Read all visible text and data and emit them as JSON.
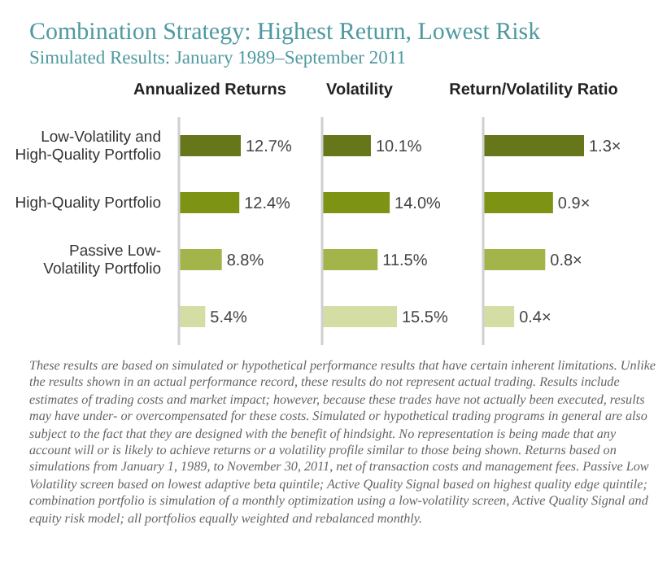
{
  "chart_data": [
    {
      "type": "other",
      "title": "Combination Strategy: Highest Return, Lowest Risk",
      "subtitle": "Simulated Results: January 1989–September 2011",
      "annotations": [
        "These results are based on simulated or hypothetical performance results that have certain inherent limitations. Unlike the results shown in an actual performance record, these results do not represent actual trading. Results include estimates of trading costs and market impact; however, because these trades have not actually been executed, results may have under- or overcompensated for these costs. Simulated or hypothetical trading programs in general are also subject to the fact that they are designed with the benefit of hindsight. No representation is being made that any account will or is likely to achieve returns or a volatility profile similar to those being shown. Returns based on simulations from January 1, 1989, to November 30, 2011, net of transaction costs and management fees. Passive Low Volatility screen based on lowest adaptive beta quintile; Active Quality Signal based on highest quality edge quintile; combination portfolio is simulation of a monthly optimization using a low-volatility screen, Active Quality Signal and equity risk model; all portfolios equally weighted and rebalanced monthly."
      ]
    },
    {
      "type": "bar",
      "orientation": "horizontal",
      "title": "Annualized Returns",
      "categories": [
        "Low-Volatility and High-Quality Portfolio",
        "High-Quality Portfolio",
        "Passive Low-Volatility Portfolio",
        null
      ],
      "values": [
        12.7,
        12.4,
        8.8,
        5.4
      ],
      "value_labels": [
        "12.7%",
        "12.4%",
        "8.8%",
        "5.4%"
      ],
      "colors": [
        "#66761a",
        "#7d9314",
        "#a3b54a",
        "#d4dea4"
      ],
      "tick_labels": "y"
    },
    {
      "type": "bar",
      "orientation": "horizontal",
      "title": "Volatility",
      "values": [
        10.1,
        14.0,
        11.5,
        15.5
      ],
      "value_labels": [
        "10.1%",
        "14.0%",
        "11.5%",
        "15.5%"
      ],
      "colors": [
        "#66761a",
        "#7d9314",
        "#a3b54a",
        "#d4dea4"
      ],
      "tick_labels": false
    },
    {
      "type": "bar",
      "orientation": "horizontal",
      "title": "Return/Volatility Ratio",
      "values": [
        1.3,
        0.9,
        0.8,
        0.4
      ],
      "value_labels": [
        "1.3×",
        "0.9×",
        "0.8×",
        "0.4×"
      ],
      "colors": [
        "#66761a",
        "#7d9314",
        "#a3b54a",
        "#d4dea4"
      ],
      "tick_labels": false
    }
  ]
}
